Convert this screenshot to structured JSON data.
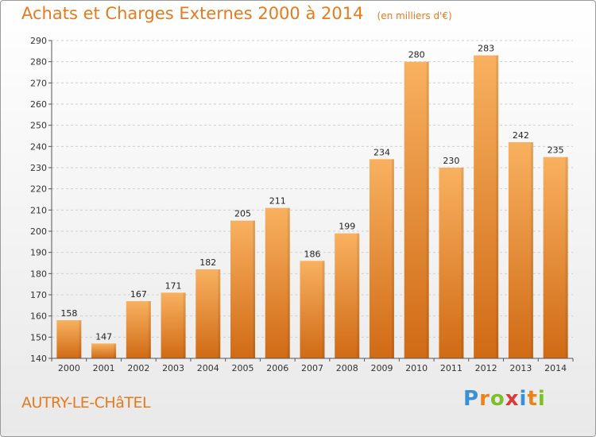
{
  "header": {
    "title": "Achats et Charges Externes 2000 à 2014",
    "unit": "(en milliers d'€)"
  },
  "footer": {
    "commune": "AUTRY-LE-CHâTEL",
    "logo_letters": [
      "P",
      "r",
      "o",
      "x",
      "i",
      "t",
      "i"
    ],
    "logo_colors": [
      "#3b8fd4",
      "#e8841a",
      "#7cbf2a",
      "#d93a3a",
      "#3b8fd4",
      "#e8841a",
      "#7cbf2a"
    ]
  },
  "chart_data": {
    "type": "bar",
    "categories": [
      "2000",
      "2001",
      "2002",
      "2003",
      "2004",
      "2005",
      "2006",
      "2007",
      "2008",
      "2009",
      "2010",
      "2011",
      "2012",
      "2013",
      "2014"
    ],
    "values": [
      158,
      147,
      167,
      171,
      182,
      205,
      211,
      186,
      199,
      234,
      280,
      230,
      283,
      242,
      235
    ],
    "title": "Achats et Charges Externes 2000 à 2014",
    "subtitle": "(en milliers d'€)",
    "xlabel": "",
    "ylabel": "",
    "ylim": [
      140,
      290
    ],
    "yticks": [
      140,
      150,
      160,
      170,
      180,
      190,
      200,
      210,
      220,
      230,
      240,
      250,
      260,
      270,
      280,
      290
    ],
    "grid": true,
    "bar_color": "#f0913a",
    "bar_color_light": "#f8b160",
    "bar_color_dark": "#d06a15",
    "accent": "#e67a1e"
  }
}
